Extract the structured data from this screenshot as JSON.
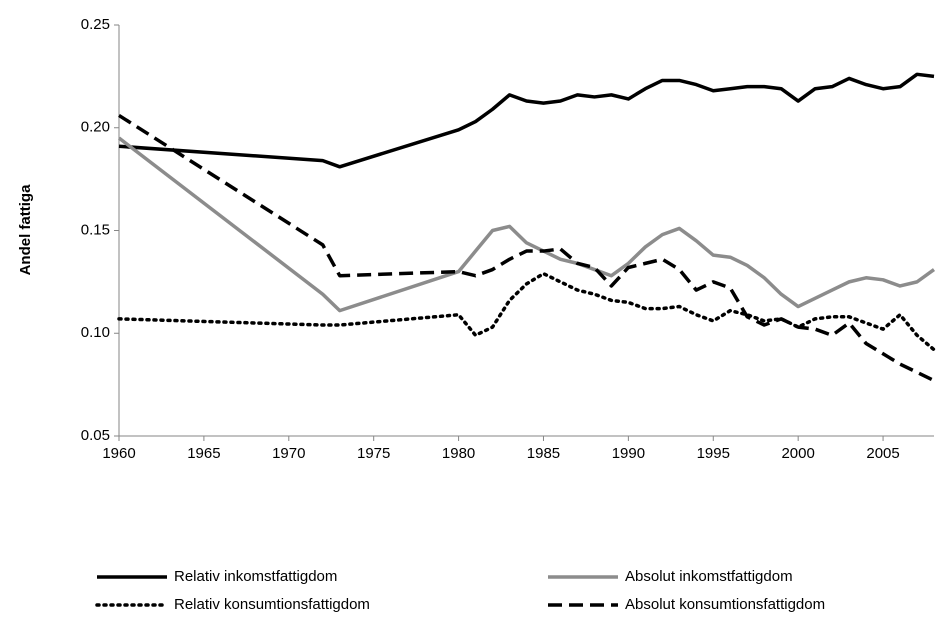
{
  "chart_data": {
    "type": "line",
    "y_label": "Andel fattiga",
    "x": [
      1960,
      1972,
      1973,
      1980,
      1981,
      1982,
      1983,
      1984,
      1985,
      1986,
      1987,
      1988,
      1989,
      1990,
      1991,
      1992,
      1993,
      1994,
      1995,
      1996,
      1997,
      1998,
      1999,
      2000,
      2001,
      2002,
      2003,
      2004,
      2005,
      2006,
      2007,
      2008
    ],
    "series": [
      {
        "name": "Relativ inkomstfattigdom",
        "color": "#000000",
        "style": "solid",
        "values": [
          0.191,
          0.184,
          0.181,
          0.199,
          0.203,
          0.209,
          0.216,
          0.213,
          0.212,
          0.213,
          0.216,
          0.215,
          0.216,
          0.214,
          0.219,
          0.223,
          0.223,
          0.221,
          0.218,
          0.219,
          0.22,
          0.22,
          0.219,
          0.213,
          0.219,
          0.22,
          0.224,
          0.221,
          0.219,
          0.22,
          0.226,
          0.225
        ]
      },
      {
        "name": "Absolut inkomstfattigdom",
        "color": "#8c8c8c",
        "style": "solid",
        "values": [
          0.195,
          0.119,
          0.111,
          0.13,
          0.14,
          0.15,
          0.152,
          0.144,
          0.14,
          0.136,
          0.134,
          0.131,
          0.128,
          0.134,
          0.142,
          0.148,
          0.151,
          0.145,
          0.138,
          0.137,
          0.133,
          0.127,
          0.119,
          0.113,
          0.117,
          0.121,
          0.125,
          0.127,
          0.126,
          0.123,
          0.125,
          0.131
        ]
      },
      {
        "name": "Relativ konsumtionsfattigdom",
        "color": "#000000",
        "style": "dotted",
        "values": [
          0.107,
          0.104,
          0.104,
          0.109,
          0.099,
          0.103,
          0.116,
          0.124,
          0.129,
          0.125,
          0.121,
          0.119,
          0.116,
          0.115,
          0.112,
          0.112,
          0.113,
          0.109,
          0.106,
          0.111,
          0.109,
          0.106,
          0.107,
          0.103,
          0.107,
          0.108,
          0.108,
          0.105,
          0.102,
          0.109,
          0.099,
          0.092
        ]
      },
      {
        "name": "Absolut konsumtionsfattigdom",
        "color": "#000000",
        "style": "dashed",
        "values": [
          0.206,
          0.143,
          0.128,
          0.13,
          0.128,
          0.131,
          0.136,
          0.14,
          0.14,
          0.141,
          0.134,
          0.132,
          0.123,
          0.132,
          0.134,
          0.136,
          0.131,
          0.121,
          0.125,
          0.122,
          0.108,
          0.104,
          0.107,
          0.103,
          0.102,
          0.099,
          0.105,
          0.095,
          0.09,
          0.085,
          0.081,
          0.077
        ]
      }
    ],
    "xlim": [
      1960,
      2008
    ],
    "xticks": [
      1960,
      1965,
      1970,
      1975,
      1980,
      1985,
      1990,
      1995,
      2000,
      2005
    ],
    "ylim": [
      0.05,
      0.25
    ],
    "yticks": [
      {
        "value": 0.05,
        "label": "0.05"
      },
      {
        "value": 0.1,
        "label": "0.10"
      },
      {
        "value": 0.15,
        "label": "0.15"
      },
      {
        "value": 0.2,
        "label": "0.20"
      },
      {
        "value": 0.25,
        "label": "0.25"
      }
    ],
    "grid": false,
    "legend": "bottom"
  }
}
